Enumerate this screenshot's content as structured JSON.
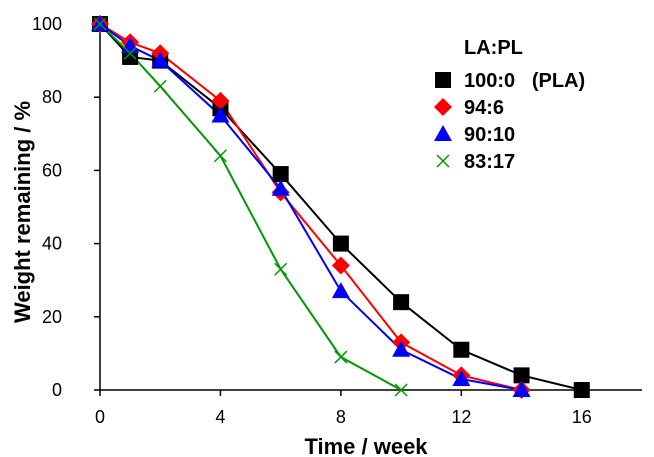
{
  "chart_data": {
    "type": "line",
    "xlabel": "Time / week",
    "ylabel": "Weight remaining / %",
    "xlim": [
      0,
      18
    ],
    "ylim": [
      0,
      100
    ],
    "xticks": [
      0,
      4,
      8,
      12,
      16
    ],
    "yticks": [
      0,
      20,
      40,
      60,
      80,
      100
    ],
    "grid": false,
    "legend_placement": "top-right",
    "legend_title": "LA:PL",
    "series": [
      {
        "name": "100:0   (PLA)",
        "color": "#000000",
        "marker": "square",
        "points": [
          [
            0,
            100
          ],
          [
            1,
            91
          ],
          [
            2,
            90
          ],
          [
            4,
            77
          ],
          [
            6,
            59
          ],
          [
            8,
            40
          ],
          [
            10,
            24
          ],
          [
            12,
            11
          ],
          [
            14,
            4
          ],
          [
            16,
            0
          ]
        ]
      },
      {
        "name": "94:6",
        "color": "#ff0000",
        "marker": "diamond",
        "points": [
          [
            0,
            100
          ],
          [
            1,
            95
          ],
          [
            2,
            92
          ],
          [
            4,
            79
          ],
          [
            6,
            54
          ],
          [
            8,
            34
          ],
          [
            10,
            13
          ],
          [
            12,
            4
          ],
          [
            14,
            0
          ]
        ]
      },
      {
        "name": "90:10",
        "color": "#0000ff",
        "marker": "triangle",
        "points": [
          [
            0,
            100
          ],
          [
            1,
            94
          ],
          [
            2,
            90
          ],
          [
            4,
            75
          ],
          [
            6,
            55
          ],
          [
            8,
            27
          ],
          [
            10,
            11
          ],
          [
            12,
            3
          ],
          [
            14,
            0
          ]
        ]
      },
      {
        "name": "83:17",
        "color": "#009900",
        "marker": "x",
        "points": [
          [
            0,
            100
          ],
          [
            1,
            92
          ],
          [
            2,
            83
          ],
          [
            4,
            64
          ],
          [
            6,
            33
          ],
          [
            8,
            9
          ],
          [
            10,
            0
          ]
        ]
      }
    ]
  }
}
